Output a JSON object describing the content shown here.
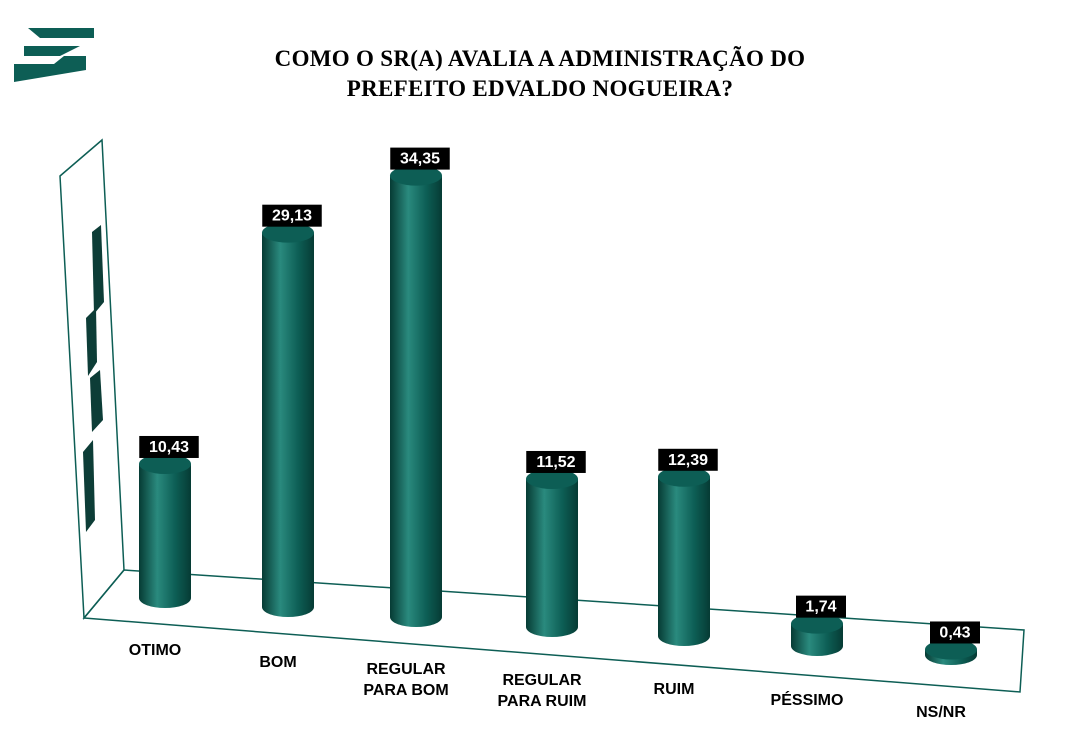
{
  "title_line1": "COMO O SR(A) AVALIA A ADMINISTRAÇÃO DO",
  "title_line2": "PREFEITO EDVALDO NOGUEIRA?",
  "colors": {
    "bar": "#0d5e55",
    "bar_dark": "#063b34",
    "bar_light": "#2a8a7e",
    "label_bg": "#000000",
    "label_text": "#ffffff"
  },
  "chart_data": {
    "type": "bar",
    "categories": [
      [
        "OTIMO"
      ],
      [
        "BOM"
      ],
      [
        "REGULAR",
        "PARA BOM"
      ],
      [
        "REGULAR",
        "PARA RUIM"
      ],
      [
        "RUIM"
      ],
      [
        "PÉSSIMO"
      ],
      [
        "NS/NR"
      ]
    ],
    "values": [
      10.43,
      29.13,
      34.35,
      11.52,
      12.39,
      1.74,
      0.43
    ],
    "value_labels": [
      "10,43",
      "29,13",
      "34,35",
      "11,52",
      "12,39",
      "1,74",
      "0,43"
    ],
    "xlabel": "",
    "ylabel": "",
    "grid": false,
    "legend": "none"
  }
}
